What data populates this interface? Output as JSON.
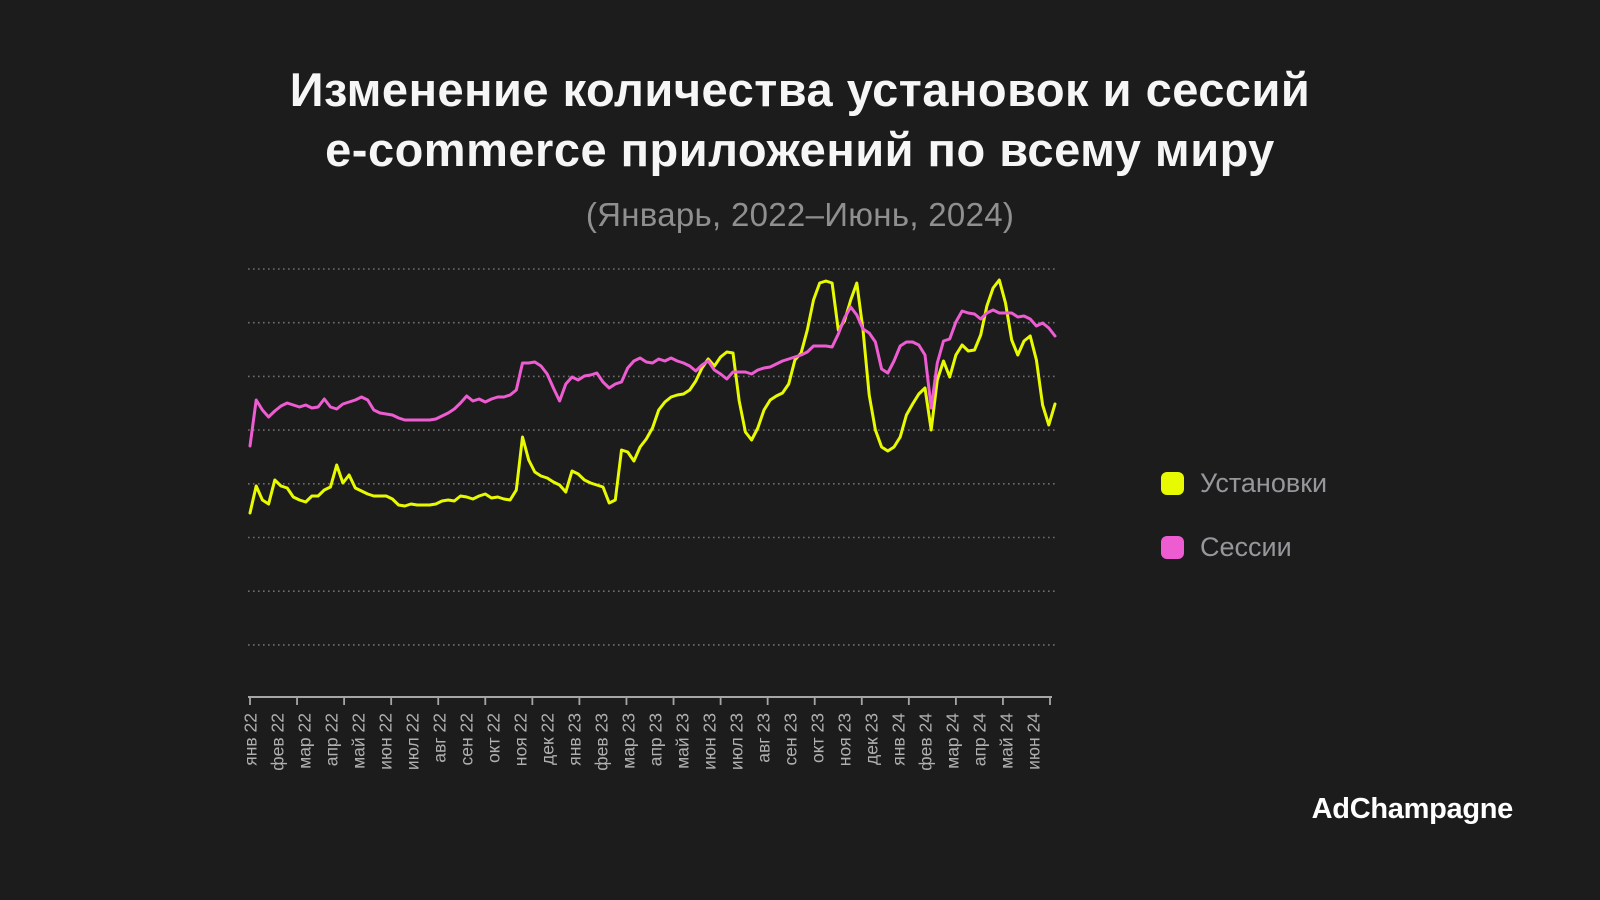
{
  "title": {
    "line1": "Изменение количества установок и сессий",
    "line2": "e-commerce приложений по всему миру",
    "subtitle": "(Январь, 2022–Июнь, 2024)"
  },
  "legend": [
    {
      "label": "Установки",
      "color": "#e8fa00"
    },
    {
      "label": "Сессии",
      "color": "#ee5cd2"
    }
  ],
  "footer": {
    "brand": "AdChampagne"
  },
  "chart_data": {
    "type": "line",
    "title": "Изменение количества установок и сессий e-commerce приложений по всему миру (Январь, 2022–Июнь, 2024)",
    "categories": [
      "янв 22",
      "фев 22",
      "мар 22",
      "апр 22",
      "май 22",
      "июн 22",
      "июл 22",
      "авг 22",
      "сен 22",
      "окт 22",
      "ноя 22",
      "дек 22",
      "янв 23",
      "фев 23",
      "мар 23",
      "апр 23",
      "май 23",
      "июн 23",
      "июл 23",
      "авг 23",
      "сен 23",
      "окт 23",
      "ноя 23",
      "дек 23",
      "янв 24",
      "фев 24",
      "мар 24",
      "апр 24",
      "май 24",
      "июн 24"
    ],
    "x_granularity": "weekly",
    "y_axis": {
      "tick_labels_visible": false,
      "unit": "relative level",
      "gridlines": 8,
      "grid_style": "dotted"
    },
    "ylim": [
      0,
      438
    ],
    "legend_position": "right",
    "series": [
      {
        "name": "Установки",
        "color": "#e8fa00",
        "values": [
          185,
          212,
          198,
          194,
          218,
          212,
          210,
          201,
          198,
          196,
          202,
          202,
          208,
          211,
          233,
          215,
          223,
          210,
          207,
          204,
          202,
          202,
          202,
          199,
          193,
          192,
          194,
          193,
          193,
          193,
          194,
          197,
          198,
          197,
          202,
          201,
          199,
          202,
          204,
          200,
          201,
          199,
          198,
          208,
          261,
          238,
          226,
          222,
          220,
          216,
          213,
          206,
          227,
          224,
          218,
          215,
          213,
          211,
          195,
          198,
          248,
          246,
          237,
          251,
          259,
          270,
          288,
          296,
          301,
          303,
          304,
          308,
          317,
          330,
          339,
          332,
          341,
          346,
          345,
          297,
          266,
          258,
          270,
          288,
          298,
          302,
          305,
          314,
          338,
          345,
          368,
          398,
          415,
          417,
          415,
          368,
          377,
          398,
          415,
          368,
          303,
          268,
          251,
          247,
          251,
          261,
          283,
          294,
          304,
          310,
          268,
          318,
          337,
          321,
          343,
          353,
          347,
          348,
          363,
          392,
          410,
          418,
          395,
          358,
          343,
          357,
          362,
          338,
          293,
          273,
          294
        ]
      },
      {
        "name": "Сессии",
        "color": "#ee5cd2",
        "values": [
          252,
          298,
          288,
          281,
          287,
          292,
          295,
          293,
          291,
          293,
          290,
          291,
          299,
          291,
          289,
          294,
          296,
          298,
          301,
          298,
          288,
          285,
          284,
          283,
          280,
          278,
          278,
          278,
          278,
          278,
          279,
          282,
          285,
          289,
          295,
          302,
          297,
          299,
          296,
          299,
          301,
          301,
          303,
          308,
          335,
          335,
          336,
          332,
          324,
          310,
          297,
          314,
          321,
          318,
          322,
          323,
          325,
          316,
          310,
          314,
          316,
          330,
          337,
          340,
          336,
          335,
          339,
          337,
          340,
          337,
          335,
          332,
          327,
          333,
          337,
          328,
          324,
          319,
          326,
          326,
          326,
          324,
          328,
          330,
          331,
          334,
          337,
          339,
          341,
          343,
          346,
          352,
          352,
          352,
          351,
          364,
          380,
          391,
          383,
          369,
          365,
          356,
          329,
          325,
          337,
          352,
          356,
          356,
          353,
          343,
          290,
          335,
          357,
          359,
          376,
          387,
          385,
          384,
          379,
          385,
          388,
          385,
          385,
          385,
          381,
          382,
          379,
          372,
          375,
          370,
          362
        ]
      }
    ]
  }
}
